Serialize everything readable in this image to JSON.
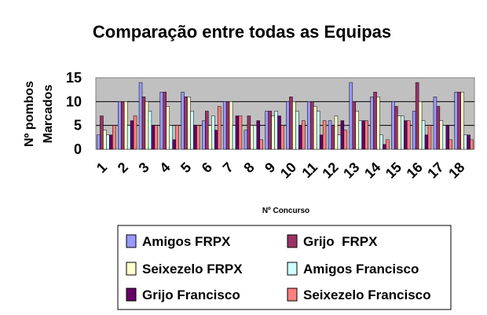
{
  "chart_data": {
    "type": "bar",
    "title": "Comparação entre todas as Equipas",
    "ylabel_lines": [
      "Nº pombos",
      "Marcados"
    ],
    "xlabel": "Nº Concurso",
    "ylim": [
      0,
      15
    ],
    "yticks": [
      "0",
      "5",
      "10",
      "15"
    ],
    "grid": true,
    "legend_position": "bottom",
    "categories": [
      "1",
      "2",
      "3",
      "4",
      "5",
      "6",
      "7",
      "8",
      "9",
      "10",
      "11",
      "12",
      "13",
      "14",
      "15",
      "16",
      "17",
      "18"
    ],
    "series": [
      {
        "name": "Amigos FRPX",
        "color": "#9999ff",
        "values": [
          3,
          10,
          14,
          12,
          12,
          6,
          10,
          4,
          8,
          10,
          10,
          6,
          14,
          11,
          10,
          8,
          11,
          12
        ]
      },
      {
        "name": "Grijo  FRPX",
        "color": "#993366",
        "values": [
          7,
          10,
          11,
          12,
          11,
          8,
          10,
          7,
          8,
          11,
          10,
          5,
          10,
          12,
          9,
          14,
          9,
          12
        ]
      },
      {
        "name": "Seixezelo FRPX",
        "color": "#ffffcc",
        "values": [
          4,
          10,
          10,
          9,
          11,
          5,
          10,
          5,
          7,
          10,
          9,
          7,
          8,
          11,
          7,
          10,
          6,
          12
        ]
      },
      {
        "name": "Amigos Francisco",
        "color": "#ccffff",
        "values": [
          3,
          5,
          8,
          5,
          8,
          7,
          5,
          5,
          8,
          8,
          8,
          3,
          6,
          3,
          7,
          6,
          5,
          3
        ]
      },
      {
        "name": "Grijo Francisco",
        "color": "#660066",
        "values": [
          3,
          6,
          5,
          2,
          5,
          4,
          7,
          6,
          7,
          5,
          3,
          6,
          6,
          1,
          6,
          3,
          5,
          3
        ]
      },
      {
        "name": "Seixezelo Francisco",
        "color": "#ff8080",
        "values": [
          5,
          7,
          5,
          5,
          5,
          9,
          7,
          2,
          5,
          6,
          6,
          4,
          6,
          2,
          6,
          5,
          2,
          2
        ]
      }
    ]
  }
}
